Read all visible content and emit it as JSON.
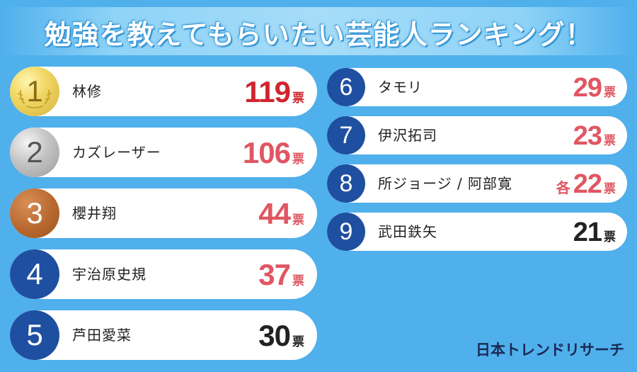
{
  "title": "勉強を教えてもらいたい芸能人ランキング！",
  "logo": "日本トレンドリサーチ",
  "colors": {
    "background": "#4fb0ec",
    "rank_badge": "#1f4fa0",
    "top_value": "#d0262f",
    "value": "#e05662",
    "value_plain": "#222222"
  },
  "chart_data": {
    "type": "bar",
    "title": "勉強を教えてもらいたい芸能人ランキング！",
    "categories": [
      "林修",
      "カズレーザー",
      "櫻井翔",
      "宇治原史規",
      "芦田愛菜",
      "タモリ",
      "伊沢拓司",
      "所ジョージ / 阿部寛",
      "武田鉄矢"
    ],
    "values": [
      119,
      106,
      44,
      37,
      30,
      29,
      23,
      22,
      21
    ],
    "unit": "票",
    "entries": [
      {
        "rank": "1",
        "name": "林修",
        "votes": "119",
        "unit": "票",
        "prefix": ""
      },
      {
        "rank": "2",
        "name": "カズレーザー",
        "votes": "106",
        "unit": "票",
        "prefix": ""
      },
      {
        "rank": "3",
        "name": "櫻井翔",
        "votes": "44",
        "unit": "票",
        "prefix": ""
      },
      {
        "rank": "4",
        "name": "宇治原史規",
        "votes": "37",
        "unit": "票",
        "prefix": ""
      },
      {
        "rank": "5",
        "name": "芦田愛菜",
        "votes": "30",
        "unit": "票",
        "prefix": ""
      },
      {
        "rank": "6",
        "name": "タモリ",
        "votes": "29",
        "unit": "票",
        "prefix": ""
      },
      {
        "rank": "7",
        "name": "伊沢拓司",
        "votes": "23",
        "unit": "票",
        "prefix": ""
      },
      {
        "rank": "8",
        "name": "所ジョージ / 阿部寛",
        "votes": "22",
        "unit": "票",
        "prefix": "各"
      },
      {
        "rank": "9",
        "name": "武田鉄矢",
        "votes": "21",
        "unit": "票",
        "prefix": ""
      }
    ]
  }
}
